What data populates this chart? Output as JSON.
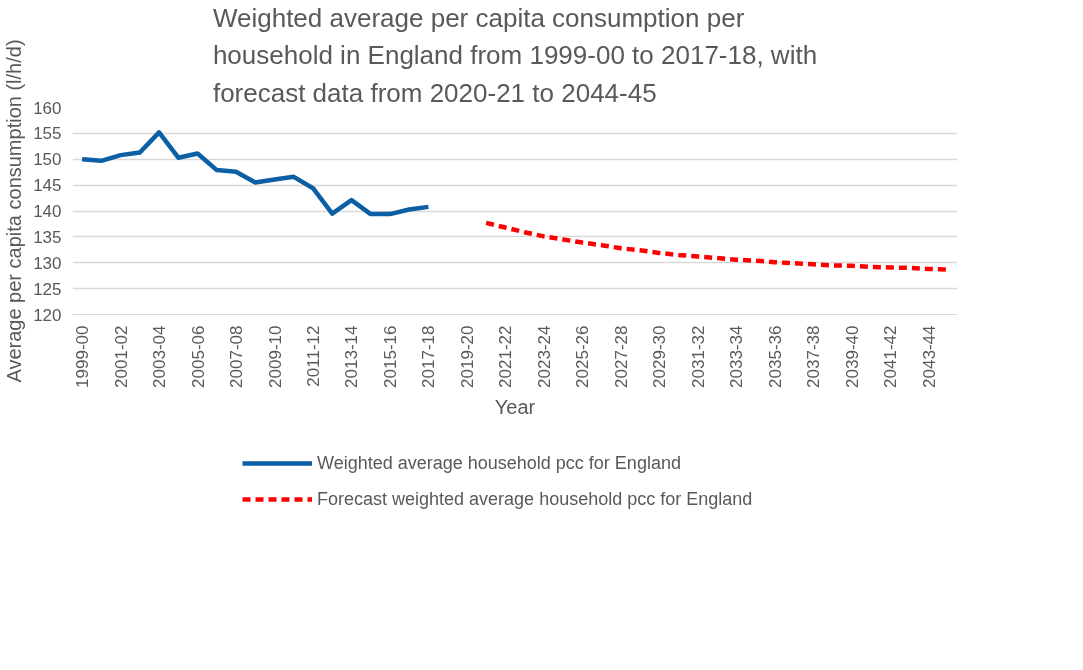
{
  "chart_data": {
    "type": "line",
    "title": "Weighted average per capita consumption per household in England from 1999-00 to 2017-18, with forecast data from 2020-21 to 2044-45",
    "xlabel": "Year",
    "ylabel": "Average per capita consumption (l/h/d)",
    "categories": [
      "1999-00",
      null,
      "2001-02",
      null,
      "2003-04",
      null,
      "2005-06",
      null,
      "2007-08",
      null,
      "2009-10",
      null,
      "2011-12",
      null,
      "2013-14",
      null,
      "2015-16",
      null,
      "2017-18",
      null,
      "2019-20",
      null,
      "2021-22",
      null,
      "2023-24",
      null,
      "2025-26",
      null,
      "2027-28",
      null,
      "2029-30",
      null,
      "2031-32",
      null,
      "2033-34",
      null,
      "2035-36",
      null,
      "2037-38",
      null,
      "2039-40",
      null,
      "2041-42",
      null,
      "2043-44",
      null
    ],
    "series": [
      {
        "name": "Weighted average household pcc for England",
        "color": "#0b5fa5",
        "line_style": "solid",
        "values": [
          150.0,
          149.7,
          150.8,
          151.3,
          155.2,
          150.3,
          151.1,
          147.9,
          147.6,
          145.5,
          146.1,
          146.6,
          144.4,
          139.5,
          142.1,
          139.4,
          139.4,
          140.3,
          140.8,
          null,
          null,
          null,
          null,
          null,
          null,
          null,
          null,
          null,
          null,
          null,
          null,
          null,
          null,
          null,
          null,
          null,
          null,
          null,
          null,
          null,
          null,
          null,
          null,
          null,
          null,
          null
        ]
      },
      {
        "name": "Forecast weighted average household pcc for England",
        "color": "#ff0000",
        "line_style": "dashed",
        "values": [
          null,
          null,
          null,
          null,
          null,
          null,
          null,
          null,
          null,
          null,
          null,
          null,
          null,
          null,
          null,
          null,
          null,
          null,
          null,
          null,
          null,
          137.7,
          136.8,
          135.9,
          135.1,
          134.5,
          133.9,
          133.4,
          132.8,
          132.4,
          131.9,
          131.5,
          131.2,
          130.9,
          130.6,
          130.4,
          130.1,
          129.9,
          129.7,
          129.5,
          129.4,
          129.2,
          129.1,
          129.0,
          128.8,
          128.7
        ]
      }
    ],
    "ylim": [
      120,
      160
    ],
    "yticks": [
      120,
      125,
      130,
      135,
      140,
      145,
      150,
      155,
      160
    ],
    "grid": "y",
    "legend": "bottom",
    "marker": "none"
  }
}
